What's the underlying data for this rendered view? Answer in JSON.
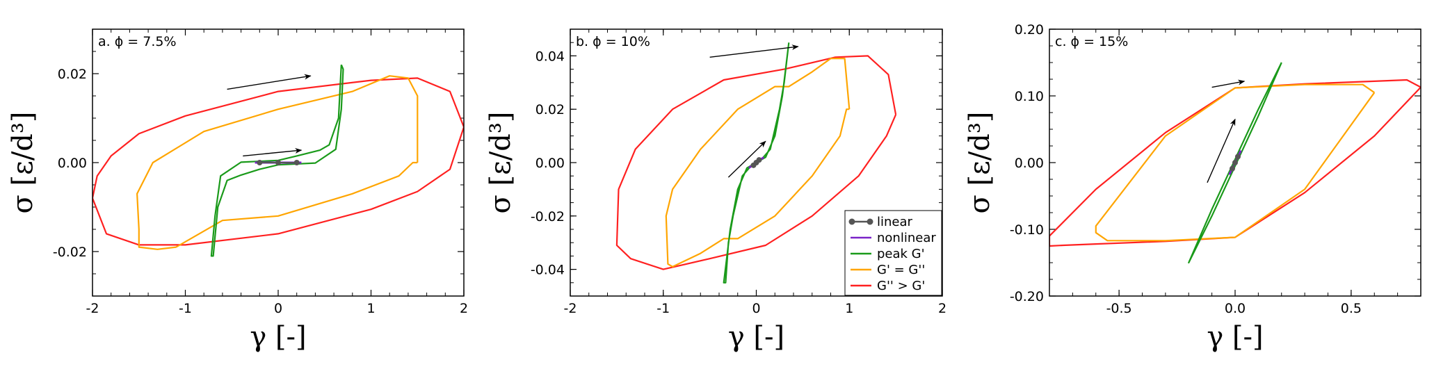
{
  "chart_data": [
    {
      "type": "line",
      "panel_label": "a. ϕ = 7.5%",
      "xlabel": "γ [-]",
      "ylabel": "σ [ε/d³]",
      "xlim": [
        -2,
        2
      ],
      "ylim": [
        -0.03,
        0.03
      ],
      "xticks": [
        -2,
        -1,
        0,
        1,
        2
      ],
      "xtick_labels": [
        "-2",
        "-1",
        "0",
        "1",
        "2"
      ],
      "yticks": [
        -0.02,
        0.0,
        0.02
      ],
      "ytick_labels": [
        "-0.02",
        "0.00",
        "0.02"
      ],
      "grid": false,
      "series": [
        {
          "name": "G'' > G'",
          "color": "#ff2020",
          "x": [
            2.0,
            1.85,
            1.5,
            1.0,
            0.0,
            -1.0,
            -1.5,
            -1.8,
            -1.95,
            -2.0,
            -1.85,
            -1.5,
            -1.0,
            0.0,
            1.0,
            1.5,
            1.85,
            2.0
          ],
          "y": [
            0.008,
            0.016,
            0.019,
            0.0185,
            0.016,
            0.0105,
            0.0065,
            0.0015,
            -0.003,
            -0.008,
            -0.016,
            -0.0185,
            -0.0185,
            -0.016,
            -0.0105,
            -0.0065,
            -0.0015,
            0.008
          ]
        },
        {
          "name": "G' = G''",
          "color": "#ffa500",
          "x": [
            1.5,
            1.5,
            1.4,
            1.2,
            0.8,
            0.0,
            -0.8,
            -1.35,
            -1.52,
            -1.5,
            -1.5,
            -1.3,
            -1.1,
            -0.6,
            0.0,
            0.8,
            1.3,
            1.45,
            1.5
          ],
          "y": [
            0.0,
            0.015,
            0.019,
            0.0195,
            0.016,
            0.012,
            0.007,
            0.0,
            -0.007,
            -0.015,
            -0.019,
            -0.0195,
            -0.019,
            -0.013,
            -0.012,
            -0.007,
            -0.003,
            0.0,
            0.0
          ]
        },
        {
          "name": "peak G'",
          "color": "#1a9a1a",
          "x": [
            0.68,
            0.65,
            0.55,
            0.45,
            0.2,
            0.0,
            -0.4,
            -0.62,
            -0.68,
            -0.72,
            -0.7,
            -0.65,
            -0.55,
            -0.4,
            -0.2,
            0.0,
            0.4,
            0.62,
            0.68,
            0.7,
            0.68
          ],
          "y": [
            0.022,
            0.01,
            0.004,
            0.0028,
            0.0015,
            0.0005,
            0.0001,
            -0.003,
            -0.012,
            -0.021,
            -0.021,
            -0.01,
            -0.004,
            -0.0028,
            -0.0015,
            -0.0005,
            -0.0001,
            0.003,
            0.012,
            0.021,
            0.022
          ]
        },
        {
          "name": "nonlinear",
          "color": "#7a22c8",
          "x": [
            -0.25,
            0.0,
            0.25
          ],
          "y": [
            0.0,
            0.0,
            0.0
          ]
        }
      ],
      "markers": [
        {
          "x": -0.2,
          "y": 0.0
        },
        {
          "x": 0.0,
          "y": 0.0
        },
        {
          "x": 0.2,
          "y": 0.0
        }
      ],
      "arrows": [
        {
          "from": [
            -0.55,
            0.0165
          ],
          "to": [
            0.35,
            0.0195
          ]
        },
        {
          "from": [
            -0.38,
            0.0015
          ],
          "to": [
            0.25,
            0.0028
          ]
        }
      ]
    },
    {
      "type": "line",
      "panel_label": "b. ϕ = 10%",
      "xlabel": "γ [-]",
      "ylabel": "σ [ε/d³]",
      "xlim": [
        -2,
        2
      ],
      "ylim": [
        -0.05,
        0.05
      ],
      "xticks": [
        -2,
        -1,
        0,
        1,
        2
      ],
      "xtick_labels": [
        "-2",
        "-1",
        "0",
        "1",
        "2"
      ],
      "yticks": [
        -0.04,
        -0.02,
        0.0,
        0.02,
        0.04
      ],
      "ytick_labels": [
        "-0.04",
        "-0.02",
        "0.00",
        "0.02",
        "0.04"
      ],
      "grid": false,
      "series": [
        {
          "name": "G'' > G'",
          "color": "#ff2020",
          "x": [
            1.5,
            1.42,
            1.2,
            0.85,
            0.3,
            -0.35,
            -0.9,
            -1.3,
            -1.48,
            -1.5,
            -1.35,
            -1.0,
            -0.5,
            0.1,
            0.6,
            1.1,
            1.4,
            1.5
          ],
          "y": [
            0.018,
            0.033,
            0.04,
            0.0395,
            0.035,
            0.031,
            0.02,
            0.005,
            -0.01,
            -0.031,
            -0.036,
            -0.04,
            -0.036,
            -0.031,
            -0.02,
            -0.005,
            0.01,
            0.018
          ]
        },
        {
          "name": "G' = G''",
          "color": "#ffa500",
          "x": [
            1.0,
            0.95,
            0.8,
            0.6,
            0.35,
            0.2,
            -0.2,
            -0.6,
            -0.9,
            -0.97,
            -0.95,
            -0.9,
            -0.6,
            -0.35,
            -0.2,
            0.2,
            0.6,
            0.9,
            0.97,
            1.0
          ],
          "y": [
            0.02,
            0.039,
            0.039,
            0.034,
            0.0285,
            0.0285,
            0.02,
            0.005,
            -0.01,
            -0.02,
            -0.038,
            -0.039,
            -0.034,
            -0.0285,
            -0.0285,
            -0.02,
            -0.005,
            0.01,
            0.02,
            0.02
          ]
        },
        {
          "name": "peak G'",
          "color": "#1a9a1a",
          "x": [
            0.35,
            0.3,
            0.25,
            0.15,
            0.05,
            -0.1,
            -0.2,
            -0.28,
            -0.35,
            -0.33,
            -0.3,
            -0.25,
            -0.15,
            -0.05,
            0.1,
            0.2,
            0.28,
            0.35
          ],
          "y": [
            0.045,
            0.03,
            0.02,
            0.005,
            0.001,
            -0.002,
            -0.01,
            -0.025,
            -0.045,
            -0.045,
            -0.03,
            -0.02,
            -0.005,
            -0.001,
            0.002,
            0.01,
            0.025,
            0.045
          ]
        },
        {
          "name": "nonlinear",
          "color": "#7a22c8",
          "x": [
            -0.08,
            0.0,
            0.08
          ],
          "y": [
            -0.002,
            0.0,
            0.002
          ]
        }
      ],
      "markers": [
        {
          "x": -0.03,
          "y": -0.001
        },
        {
          "x": 0.0,
          "y": 0.0
        },
        {
          "x": 0.03,
          "y": 0.001
        }
      ],
      "arrows": [
        {
          "from": [
            -0.5,
            0.0395
          ],
          "to": [
            0.45,
            0.0435
          ]
        },
        {
          "from": [
            -0.3,
            -0.0055
          ],
          "to": [
            0.1,
            0.008
          ]
        }
      ]
    },
    {
      "type": "line",
      "panel_label": "c. ϕ = 15%",
      "xlabel": "γ [-]",
      "ylabel": "σ [ε/d³]",
      "xlim": [
        -0.8,
        0.8
      ],
      "ylim": [
        -0.2,
        0.2
      ],
      "xticks": [
        -0.5,
        0.0,
        0.5
      ],
      "xtick_labels": [
        "-0.5",
        "0.0",
        "0.5"
      ],
      "yticks": [
        -0.2,
        -0.1,
        0.0,
        0.1,
        0.2
      ],
      "ytick_labels": [
        "-0.20",
        "-0.10",
        "0.00",
        "0.10",
        "0.20"
      ],
      "grid": false,
      "series": [
        {
          "name": "G'' > G'",
          "color": "#ff2020",
          "x": [
            0.8,
            0.74,
            0.6,
            0.3,
            0.0,
            -0.3,
            -0.6,
            -0.8,
            -0.8,
            -0.74,
            -0.6,
            -0.3,
            0.0,
            0.3,
            0.6,
            0.8
          ],
          "y": [
            0.113,
            0.124,
            0.122,
            0.118,
            0.112,
            0.045,
            -0.04,
            -0.11,
            -0.125,
            -0.124,
            -0.122,
            -0.118,
            -0.112,
            -0.045,
            0.04,
            0.113
          ]
        },
        {
          "name": "G' = G''",
          "color": "#ffa500",
          "x": [
            0.6,
            0.55,
            0.3,
            0.0,
            -0.3,
            -0.6,
            -0.6,
            -0.55,
            -0.3,
            0.0,
            0.3,
            0.6
          ],
          "y": [
            0.105,
            0.117,
            0.117,
            0.112,
            0.04,
            -0.095,
            -0.105,
            -0.117,
            -0.117,
            -0.112,
            -0.04,
            0.105
          ]
        },
        {
          "name": "peak G'",
          "color": "#1a9a1a",
          "x": [
            0.2,
            0.1,
            0.0,
            -0.1,
            -0.2,
            -0.1,
            0.0,
            0.1,
            0.2
          ],
          "y": [
            0.15,
            0.08,
            0.005,
            -0.07,
            -0.15,
            -0.08,
            -0.005,
            0.07,
            0.15
          ]
        },
        {
          "name": "nonlinear",
          "color": "#7a22c8",
          "x": [
            -0.025,
            0.0,
            0.025
          ],
          "y": [
            -0.018,
            0.0,
            0.018
          ]
        }
      ],
      "markers": [
        {
          "x": -0.012,
          "y": -0.009
        },
        {
          "x": 0.0,
          "y": 0.0
        },
        {
          "x": 0.012,
          "y": 0.009
        }
      ],
      "arrows": [
        {
          "from": [
            -0.1,
            0.113
          ],
          "to": [
            0.04,
            0.122
          ]
        },
        {
          "from": [
            -0.12,
            -0.03
          ],
          "to": [
            0.0,
            0.065
          ]
        }
      ]
    }
  ],
  "legend": {
    "placement": "bottom-right of panel b",
    "entries": [
      {
        "label": "linear",
        "color": "#555555",
        "style": "marker-line"
      },
      {
        "label": "nonlinear",
        "color": "#7a22c8",
        "style": "line"
      },
      {
        "label": "peak G'",
        "color": "#1a9a1a",
        "style": "line"
      },
      {
        "label": "G' = G''",
        "color": "#ffa500",
        "style": "line"
      },
      {
        "label": "G'' > G'",
        "color": "#ff2020",
        "style": "line"
      }
    ]
  }
}
